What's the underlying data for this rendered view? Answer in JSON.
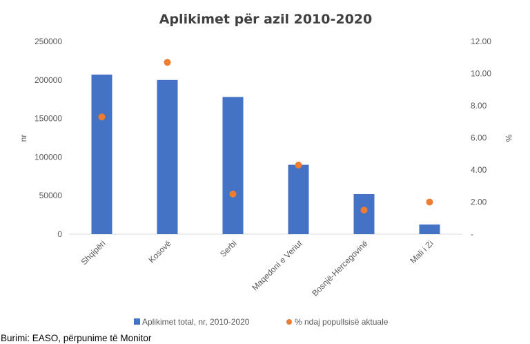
{
  "chart_data": {
    "type": "bar",
    "title": "Aplikimet për azil 2010-2020",
    "categories": [
      "Shqipëri",
      "Kosovë",
      "Serbi",
      "Maqedoni e Veriut",
      "Bosnjë-Hercegovinë",
      "Mali i Zi"
    ],
    "series": [
      {
        "name": "Aplikimet total, nr, 2010-2020",
        "type": "bar",
        "axis": "left",
        "color": "#4472C4",
        "values": [
          207000,
          200000,
          178000,
          90000,
          52000,
          12500
        ]
      },
      {
        "name": "% ndaj popullsisë aktuale",
        "type": "scatter",
        "axis": "right",
        "color": "#ED7D31",
        "values": [
          7.3,
          10.7,
          2.5,
          4.3,
          1.5,
          2.0
        ]
      }
    ],
    "ylabel": "nr",
    "ylabel_right": "%",
    "ylim": [
      0,
      250000
    ],
    "ylim_right": [
      0,
      12
    ],
    "yticks": [
      "0",
      "50000",
      "100000",
      "150000",
      "200000",
      "250000"
    ],
    "yticks_right": [
      "-",
      "2.00",
      "4.00",
      "6.00",
      "8.00",
      "10.00",
      "12.00"
    ],
    "grid": false,
    "legend_position": "bottom"
  },
  "source_note": "Burimi: EASO, përpunime të Monitor"
}
